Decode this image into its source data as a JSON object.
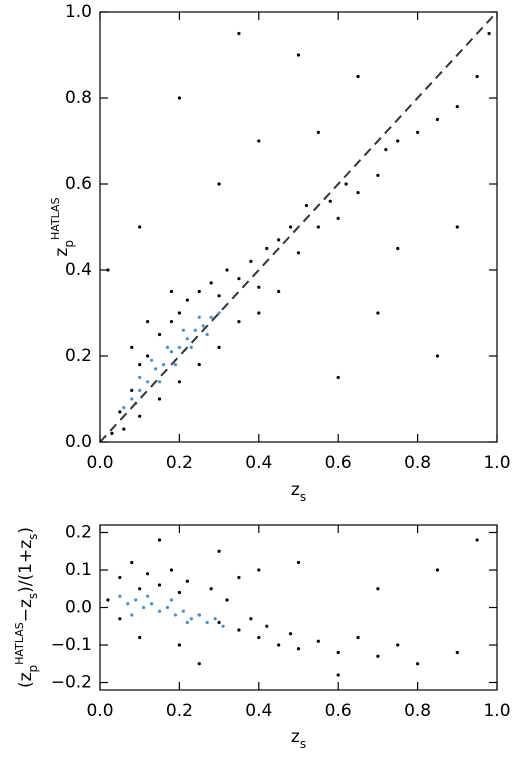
{
  "chart_data": [
    {
      "type": "scatter",
      "xlim": [
        0,
        1
      ],
      "ylim": [
        0,
        1
      ],
      "xticks": [
        {
          "value": 0,
          "label": "0.0"
        },
        0.2,
        0.4,
        0.6,
        0.8,
        {
          "value": 1,
          "label": "1.0"
        }
      ],
      "yticks": [
        {
          "value": 0,
          "label": "0.0"
        },
        0.2,
        0.4,
        0.6,
        0.8,
        {
          "value": 1,
          "label": "1.0"
        }
      ],
      "xlabel": [
        {
          "text": "z"
        },
        {
          "sub": "s"
        }
      ],
      "ylabel": [
        {
          "text": "z"
        },
        {
          "sub": "p"
        },
        {
          "sup": "HATLAS"
        }
      ],
      "reference_line": {
        "x": [
          0,
          1
        ],
        "y": [
          0,
          1
        ],
        "color": "#333333"
      },
      "series": [
        {
          "color": "#000000",
          "x": [
            0.05,
            0.08,
            0.1,
            0.12,
            0.15,
            0.18,
            0.2,
            0.22,
            0.25,
            0.28,
            0.3,
            0.32,
            0.35,
            0.38,
            0.4,
            0.42,
            0.45,
            0.48,
            0.5,
            0.52,
            0.55,
            0.58,
            0.6,
            0.62,
            0.65,
            0.7,
            0.72,
            0.75,
            0.8,
            0.85,
            0.9,
            0.95,
            0.3,
            0.35,
            0.4,
            0.45,
            0.25,
            0.2,
            0.15,
            0.1,
            0.06,
            0.03,
            0.12,
            0.18,
            0.08,
            0.3,
            0.2,
            0.5,
            0.7,
            0.85,
            0.1,
            0.4,
            0.6,
            0.9,
            0.35,
            0.65,
            0.02,
            0.55,
            0.75,
            0.98
          ],
          "y": [
            0.07,
            0.12,
            0.18,
            0.2,
            0.25,
            0.28,
            0.3,
            0.33,
            0.35,
            0.37,
            0.34,
            0.4,
            0.38,
            0.42,
            0.36,
            0.45,
            0.47,
            0.5,
            0.44,
            0.55,
            0.5,
            0.56,
            0.52,
            0.6,
            0.58,
            0.62,
            0.68,
            0.7,
            0.72,
            0.75,
            0.78,
            0.85,
            0.22,
            0.28,
            0.3,
            0.35,
            0.18,
            0.14,
            0.1,
            0.06,
            0.03,
            0.02,
            0.28,
            0.35,
            0.22,
            0.6,
            0.8,
            0.9,
            0.3,
            0.2,
            0.5,
            0.7,
            0.15,
            0.5,
            0.95,
            0.85,
            0.4,
            0.72,
            0.45,
            0.95
          ]
        },
        {
          "color": "#4a8fca",
          "x": [
            0.06,
            0.08,
            0.1,
            0.12,
            0.14,
            0.16,
            0.18,
            0.2,
            0.22,
            0.24,
            0.26,
            0.28,
            0.3,
            0.1,
            0.13,
            0.17,
            0.21,
            0.25,
            0.09,
            0.15,
            0.19,
            0.23,
            0.27
          ],
          "y": [
            0.08,
            0.1,
            0.12,
            0.14,
            0.17,
            0.18,
            0.21,
            0.22,
            0.24,
            0.26,
            0.27,
            0.29,
            0.3,
            0.15,
            0.19,
            0.22,
            0.26,
            0.29,
            0.09,
            0.14,
            0.18,
            0.22,
            0.25
          ]
        }
      ]
    },
    {
      "type": "scatter",
      "xlim": [
        0,
        1
      ],
      "ylim": [
        -0.22,
        0.22
      ],
      "xticks": [
        {
          "value": 0,
          "label": "0.0"
        },
        0.2,
        0.4,
        0.6,
        0.8,
        {
          "value": 1,
          "label": "1.0"
        }
      ],
      "yticks": [
        {
          "value": -0.2,
          "label": "−0.2"
        },
        {
          "value": -0.1,
          "label": "−0.1"
        },
        {
          "value": 0,
          "label": "0.0"
        },
        0.1,
        0.2
      ],
      "xlabel": [
        {
          "text": "z"
        },
        {
          "sub": "s"
        }
      ],
      "ylabel": [
        {
          "text": "(z"
        },
        {
          "sub": "p"
        },
        {
          "sup": "HATLAS"
        },
        {
          "text": "−z"
        },
        {
          "sub": "s"
        },
        {
          "text": ")/(1+z"
        },
        {
          "sub": "s"
        },
        {
          "text": ")"
        }
      ],
      "series": [
        {
          "color": "#000000",
          "x": [
            0.02,
            0.05,
            0.08,
            0.1,
            0.12,
            0.15,
            0.18,
            0.2,
            0.22,
            0.25,
            0.28,
            0.3,
            0.32,
            0.35,
            0.38,
            0.4,
            0.42,
            0.45,
            0.48,
            0.5,
            0.55,
            0.6,
            0.65,
            0.7,
            0.75,
            0.8,
            0.9,
            0.1,
            0.2,
            0.3,
            0.5,
            0.7,
            0.85,
            0.95,
            0.6,
            0.15,
            0.4,
            0.25,
            0.05,
            0.35
          ],
          "y": [
            0.02,
            0.08,
            0.12,
            0.05,
            0.09,
            0.06,
            0.1,
            0.04,
            0.07,
            -0.02,
            0.05,
            -0.04,
            0.02,
            -0.06,
            -0.03,
            -0.08,
            -0.05,
            -0.1,
            -0.07,
            -0.11,
            -0.09,
            -0.12,
            -0.08,
            -0.13,
            -0.1,
            -0.15,
            -0.12,
            -0.08,
            -0.1,
            0.15,
            0.12,
            0.05,
            0.1,
            0.18,
            -0.18,
            0.18,
            0.1,
            -0.15,
            -0.03,
            0.08
          ]
        },
        {
          "color": "#4a8fca",
          "x": [
            0.05,
            0.07,
            0.09,
            0.11,
            0.13,
            0.15,
            0.17,
            0.19,
            0.21,
            0.23,
            0.25,
            0.27,
            0.29,
            0.31,
            0.08,
            0.12,
            0.18,
            0.22
          ],
          "y": [
            0.03,
            0.01,
            0.02,
            0,
            0.01,
            -0.01,
            0,
            -0.02,
            -0.01,
            -0.03,
            -0.02,
            -0.04,
            -0.03,
            -0.05,
            -0.02,
            0.03,
            0.02,
            -0.04
          ]
        }
      ]
    }
  ]
}
